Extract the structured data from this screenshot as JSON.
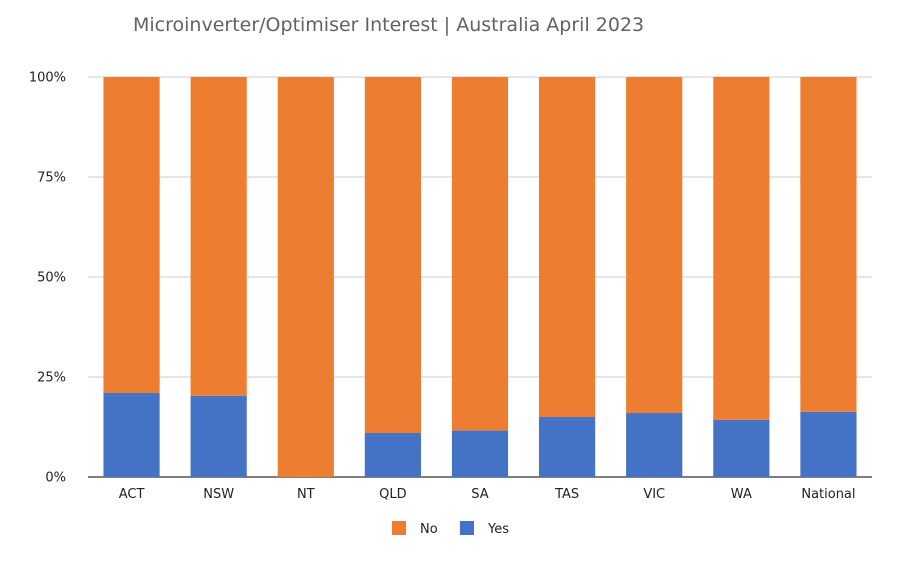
{
  "chart_data": {
    "type": "bar",
    "stacked": true,
    "percent": true,
    "title": "Microinverter/Optimiser Interest | Australia April 2023",
    "categories": [
      "ACT",
      "NSW",
      "NT",
      "QLD",
      "SA",
      "TAS",
      "VIC",
      "WA",
      "National"
    ],
    "series": [
      {
        "name": "Yes",
        "color": "#4472c4",
        "values": [
          21,
          20.3,
          0,
          11,
          11.6,
          15,
          16,
          14.3,
          16.3
        ]
      },
      {
        "name": "No",
        "color": "#ed7d31",
        "values": [
          79,
          79.7,
          100,
          89,
          88.4,
          85,
          84,
          85.7,
          83.7
        ]
      }
    ],
    "yticks": [
      "0%",
      "25%",
      "50%",
      "75%",
      "100%"
    ],
    "ylim": [
      0,
      100
    ],
    "grid": true,
    "legend": {
      "position": "bottom",
      "order": [
        "No",
        "Yes"
      ]
    }
  }
}
